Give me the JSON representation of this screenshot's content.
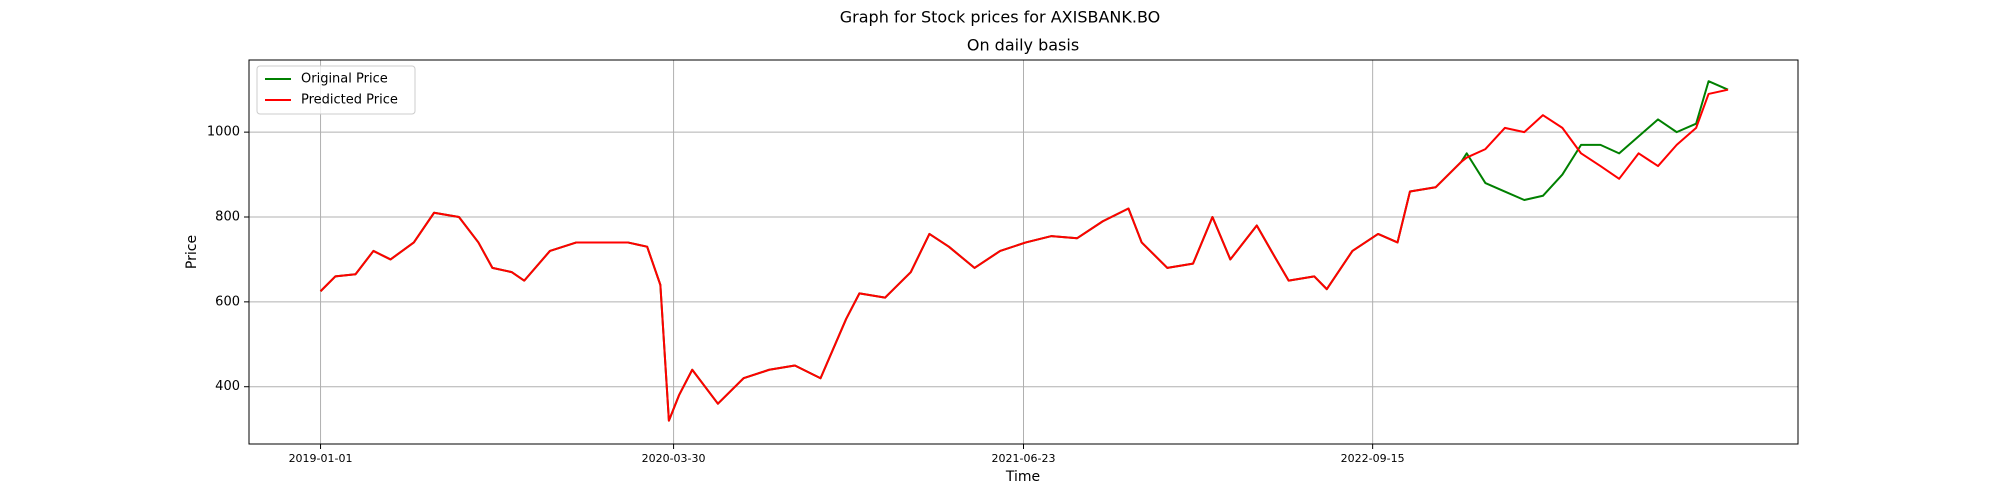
{
  "chart_data": {
    "type": "line",
    "suptitle": "Graph for Stock prices for AXISBANK.BO",
    "title": "On daily basis",
    "xlabel": "Time",
    "ylabel": "Price",
    "x": [
      "2019-01-01",
      "2019-01-20",
      "2019-02-15",
      "2019-03-10",
      "2019-04-01",
      "2019-05-01",
      "2019-05-27",
      "2019-06-28",
      "2019-07-23",
      "2019-08-10",
      "2019-09-04",
      "2019-09-20",
      "2019-10-23",
      "2019-11-26",
      "2019-12-29",
      "2020-01-31",
      "2020-02-25",
      "2020-03-13",
      "2020-03-24",
      "2020-04-06",
      "2020-04-23",
      "2020-05-26",
      "2020-06-28",
      "2020-07-31",
      "2020-09-02",
      "2020-10-05",
      "2020-11-07",
      "2020-11-24",
      "2020-12-27",
      "2021-01-29",
      "2021-02-22",
      "2021-03-19",
      "2021-04-21",
      "2021-05-24",
      "2021-06-26",
      "2021-07-29",
      "2021-08-31",
      "2021-10-03",
      "2021-11-05",
      "2021-11-22",
      "2021-12-25",
      "2022-01-27",
      "2022-02-21",
      "2022-03-16",
      "2022-04-19",
      "2022-05-14",
      "2022-05-30",
      "2022-07-02",
      "2022-07-18",
      "2022-08-20",
      "2022-09-22",
      "2022-10-17",
      "2022-11-02",
      "2022-12-05",
      "2023-01-07",
      "2023-01-14",
      "2023-02-07",
      "2023-03-04",
      "2023-03-29",
      "2023-04-22",
      "2023-05-17",
      "2023-06-10",
      "2023-07-05",
      "2023-07-29",
      "2023-08-23",
      "2023-09-17",
      "2023-10-11",
      "2023-11-05",
      "2023-11-21",
      "2023-12-16"
    ],
    "series": [
      {
        "name": "Original Price",
        "color": "#008000",
        "values": [
          625,
          660,
          665,
          720,
          700,
          740,
          810,
          800,
          740,
          680,
          670,
          650,
          720,
          740,
          740,
          740,
          730,
          640,
          320,
          380,
          440,
          360,
          420,
          440,
          450,
          420,
          560,
          620,
          610,
          670,
          760,
          730,
          680,
          720,
          740,
          755,
          750,
          790,
          820,
          740,
          680,
          690,
          800,
          700,
          780,
          700,
          650,
          660,
          630,
          720,
          760,
          740,
          860,
          870,
          930,
          950,
          880,
          860,
          840,
          850,
          900,
          970,
          970,
          950,
          990,
          1030,
          1000,
          1020,
          1120,
          1100
        ]
      },
      {
        "name": "Predicted Price",
        "color": "#ff0000",
        "values": [
          625,
          660,
          665,
          720,
          700,
          740,
          810,
          800,
          740,
          680,
          670,
          650,
          720,
          740,
          740,
          740,
          730,
          640,
          320,
          380,
          440,
          360,
          420,
          440,
          450,
          420,
          560,
          620,
          610,
          670,
          760,
          730,
          680,
          720,
          740,
          755,
          750,
          790,
          820,
          740,
          680,
          690,
          800,
          700,
          780,
          700,
          650,
          660,
          630,
          720,
          760,
          740,
          860,
          870,
          930,
          940,
          960,
          1010,
          1000,
          1040,
          1010,
          950,
          920,
          890,
          950,
          920,
          970,
          1010,
          1090,
          1100
        ]
      }
    ],
    "xlim": [
      "2018-10-01",
      "2024-03-15"
    ],
    "xticks": [
      "2019-01-01",
      "2020-03-30",
      "2021-06-23",
      "2022-09-15"
    ],
    "ylim": [
      265,
      1170
    ],
    "yticks": [
      400,
      600,
      800,
      1000
    ],
    "grid": true,
    "legend": "upper-left"
  }
}
